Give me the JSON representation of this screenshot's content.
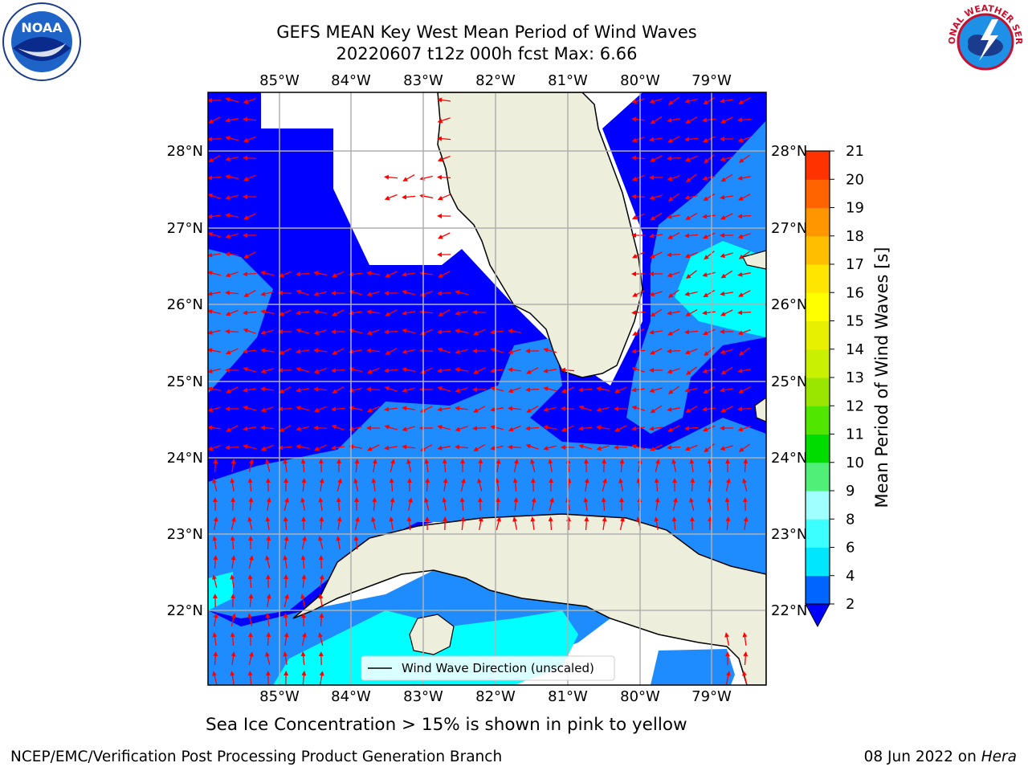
{
  "title": {
    "line1": "GEFS MEAN Key West Mean Period of Wind Waves",
    "line2": "20220607 t12z 000h fcst   Max: 6.66"
  },
  "map": {
    "lon_labels": [
      "85°W",
      "84°W",
      "83°W",
      "82°W",
      "81°W",
      "80°W",
      "79°W"
    ],
    "lat_labels": [
      "28°N",
      "27°N",
      "26°N",
      "25°N",
      "24°N",
      "23°N",
      "22°N"
    ],
    "legend_label": "Wind Wave Direction (unscaled)",
    "colors": {
      "land": "#eeeedd",
      "band_2_4": "#0000ff",
      "band_4_6": "#1e8cff",
      "band_6_8": "#00ffff",
      "band_8_9": "#7fffff",
      "arrow": "#ff0000",
      "grid": "#b0b0b0"
    }
  },
  "colorbar": {
    "label": "Mean Period of Wind Waves [s]",
    "ticks": [
      "2",
      "4",
      "6",
      "8",
      "9",
      "10",
      "11",
      "12",
      "13",
      "14",
      "15",
      "16",
      "17",
      "18",
      "19",
      "20",
      "21"
    ],
    "colors": [
      "#0064ff",
      "#00e6ff",
      "#3cffff",
      "#a0ffff",
      "#50f078",
      "#00dc00",
      "#50e600",
      "#9be600",
      "#c8f000",
      "#e6f000",
      "#ffff00",
      "#ffe600",
      "#ffbe00",
      "#ff9600",
      "#ff6400",
      "#ff3200",
      "#ff0000"
    ],
    "extend_color": "#0000ff"
  },
  "captions": {
    "ice": "Sea Ice Concentration > 15% is shown in pink to yellow",
    "footer_left": "NCEP/EMC/Verification Post Processing Product Generation Branch",
    "footer_date": "08 Jun 2022 on ",
    "footer_machine": "Hera"
  },
  "logos": {
    "noaa_text": "NOAA",
    "nws_text": "NATIONAL WEATHER SERVICE"
  }
}
